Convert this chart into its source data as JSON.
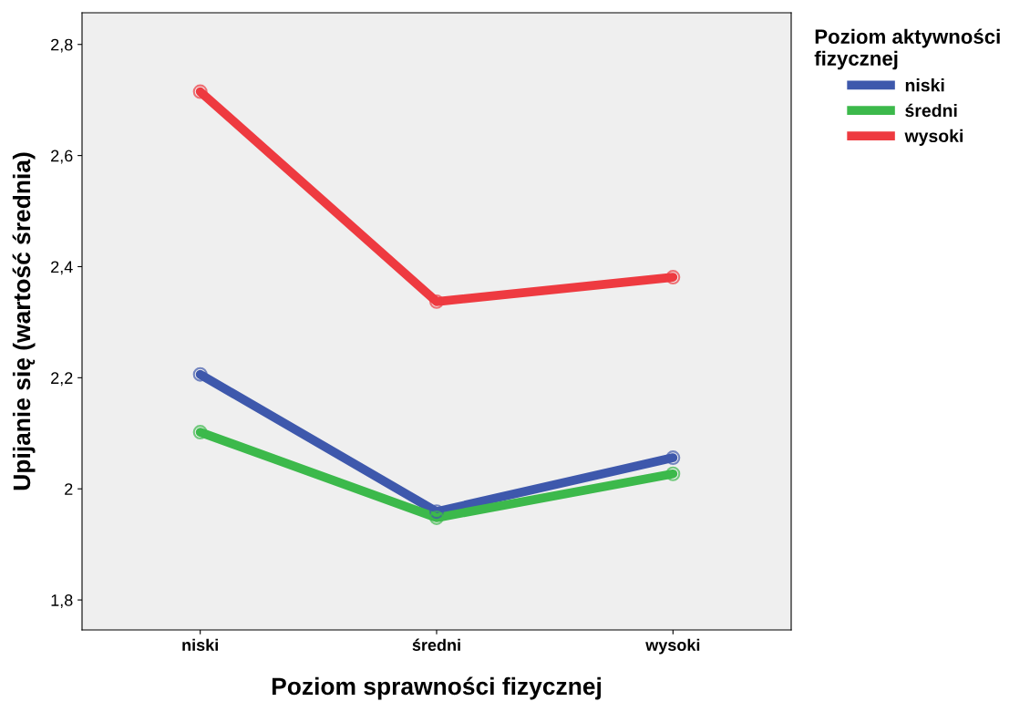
{
  "chart_data": {
    "type": "line",
    "xlabel": "Poziom sprawności fizycznej",
    "ylabel": "Upijanie się (wartość średnia)",
    "legend_title": "Poziom aktywności\nfizycznej",
    "categories": [
      "niski",
      "średni",
      "wysoki"
    ],
    "series": [
      {
        "name": "niski",
        "color": "#3e58ac",
        "values": [
          2.206,
          1.959,
          2.056
        ]
      },
      {
        "name": "średni",
        "color": "#3cb94b",
        "values": [
          2.102,
          1.948,
          2.027
        ]
      },
      {
        "name": "wysoki",
        "color": "#ee3a40",
        "values": [
          2.715,
          2.337,
          2.381
        ]
      }
    ],
    "ylim": [
      1.746,
      2.857
    ],
    "yticks": [
      {
        "value": 1.8,
        "label": "1,8"
      },
      {
        "value": 2,
        "label": "2"
      },
      {
        "value": 2.2,
        "label": "2,2"
      },
      {
        "value": 2.4,
        "label": "2,4"
      },
      {
        "value": 2.6,
        "label": "2,6"
      },
      {
        "value": 2.8,
        "label": "2,8"
      }
    ],
    "grid": false,
    "legend": "top right",
    "marker": "circle",
    "line_style": "solid"
  }
}
